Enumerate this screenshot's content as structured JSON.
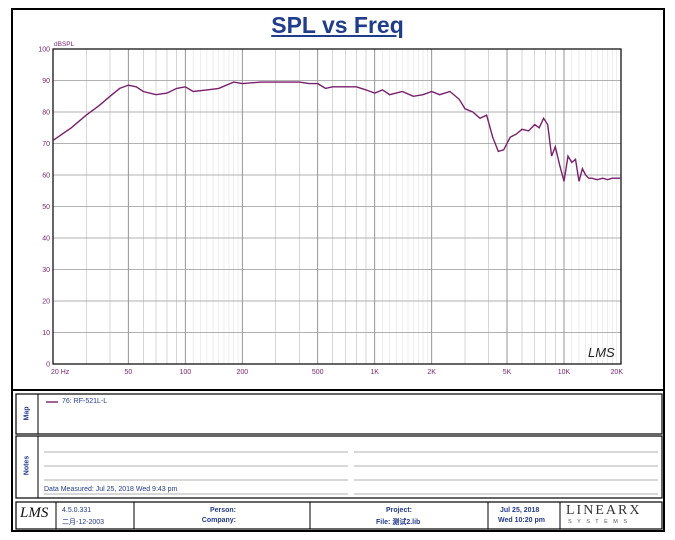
{
  "title": "SPL vs Freq",
  "chart_data": {
    "type": "line",
    "title": "SPL vs Freq",
    "ylabel": "dBSPL",
    "xlabel": "",
    "x_scale": "log",
    "xlim": [
      20,
      20000
    ],
    "ylim": [
      0,
      100
    ],
    "grid": true,
    "y_ticks": [
      0,
      10,
      20,
      30,
      40,
      50,
      60,
      70,
      80,
      90,
      100
    ],
    "x_tick_labels": [
      {
        "value": 20,
        "label": "20 Hz"
      },
      {
        "value": 50,
        "label": "50"
      },
      {
        "value": 100,
        "label": "100"
      },
      {
        "value": 200,
        "label": "200"
      },
      {
        "value": 500,
        "label": "500"
      },
      {
        "value": 1000,
        "label": "1K"
      },
      {
        "value": 2000,
        "label": "2K"
      },
      {
        "value": 5000,
        "label": "5K"
      },
      {
        "value": 10000,
        "label": "10K"
      },
      {
        "value": 20000,
        "label": "20K"
      }
    ],
    "series": [
      {
        "name": "76: RF-521L-L",
        "color": "#7a1f6e",
        "x": [
          20,
          25,
          30,
          35,
          40,
          45,
          50,
          55,
          60,
          70,
          80,
          90,
          100,
          110,
          130,
          150,
          180,
          200,
          250,
          300,
          350,
          400,
          450,
          500,
          550,
          600,
          700,
          800,
          900,
          1000,
          1100,
          1200,
          1400,
          1600,
          1800,
          2000,
          2200,
          2500,
          2800,
          3000,
          3300,
          3600,
          3900,
          4200,
          4500,
          4800,
          5200,
          5600,
          6000,
          6500,
          7000,
          7400,
          7800,
          8200,
          8600,
          9000,
          9500,
          10000,
          10500,
          11000,
          11500,
          12000,
          12500,
          13000,
          13500,
          14000,
          15000,
          16000,
          17000,
          18000,
          19000,
          20000
        ],
        "y": [
          71,
          75,
          79,
          82,
          85,
          87.5,
          88.5,
          88,
          86.5,
          85.5,
          86,
          87.5,
          88,
          86.5,
          87,
          87.5,
          89.5,
          89,
          89.5,
          89.5,
          89.5,
          89.5,
          89,
          89,
          87.5,
          88,
          88,
          88,
          87,
          86,
          87,
          85.5,
          86.5,
          85,
          85.5,
          86.5,
          85.5,
          86.5,
          84,
          81,
          80,
          78,
          79,
          72,
          67.5,
          68,
          72,
          73,
          74.5,
          74,
          76,
          75,
          78,
          76,
          66,
          69,
          63,
          58,
          66,
          64,
          65,
          58,
          62,
          60,
          59,
          59,
          58.5,
          59,
          58.5,
          59,
          59,
          59
        ]
      }
    ]
  },
  "logo_corner": "LMS",
  "map_label": "Map",
  "notes_label": "Notes",
  "legend_entry": "76: RF-521L-L",
  "data_measured": "Data Measured: Jul 25, 2018  Wed  9:43 pm",
  "footer": {
    "logo": "LMS",
    "version": "4.5.0.331",
    "version_date": "二月-12-2003",
    "person_label": "Person:",
    "company_label": "Company:",
    "project_label": "Project:",
    "file_label": "File: 测试2.lib",
    "date": "Jul 25, 2018",
    "time": "Wed 10:20 pm",
    "brand": "LINEARX",
    "brand_sub": "S Y S T E M S"
  }
}
